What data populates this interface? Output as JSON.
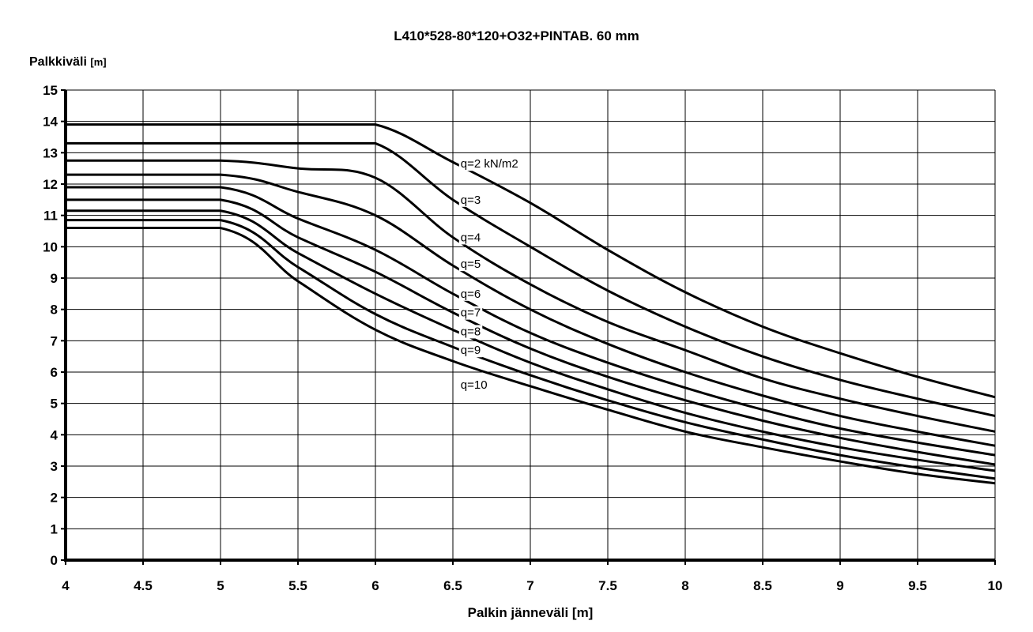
{
  "chart_data": {
    "type": "line",
    "title": "L410*528-80*120+O32+PINTAB. 60 mm",
    "ylabel": "Palkkiväli",
    "ylabel_unit": "[m]",
    "xlabel": "Palkin jänneväli [m]",
    "xlim": [
      4,
      10
    ],
    "ylim": [
      0,
      15
    ],
    "x_ticks": [
      "4",
      "4.5",
      "5",
      "5.5",
      "6",
      "6.5",
      "7",
      "7.5",
      "8",
      "8.5",
      "9",
      "9.5",
      "10"
    ],
    "y_ticks": [
      "0",
      "1",
      "2",
      "3",
      "4",
      "5",
      "6",
      "7",
      "8",
      "9",
      "10",
      "11",
      "12",
      "13",
      "14",
      "15"
    ],
    "grid": true,
    "x": [
      4,
      5,
      5.5,
      6,
      6.5,
      7,
      7.5,
      8,
      8.5,
      9,
      9.5,
      10
    ],
    "series": [
      {
        "name": "q=2 kN/m2",
        "values": [
          13.9,
          13.9,
          13.9,
          13.9,
          12.7,
          11.4,
          9.9,
          8.55,
          7.45,
          6.6,
          5.85,
          5.2
        ]
      },
      {
        "name": "q=3",
        "values": [
          13.3,
          13.3,
          13.3,
          13.3,
          11.5,
          10.0,
          8.6,
          7.45,
          6.5,
          5.75,
          5.15,
          4.6
        ]
      },
      {
        "name": "q=4",
        "values": [
          12.75,
          12.75,
          12.5,
          12.2,
          10.3,
          8.8,
          7.6,
          6.7,
          5.8,
          5.15,
          4.6,
          4.1
        ]
      },
      {
        "name": "q=5",
        "values": [
          12.3,
          12.3,
          11.75,
          11.0,
          9.4,
          8.0,
          6.9,
          6.0,
          5.25,
          4.6,
          4.1,
          3.65
        ]
      },
      {
        "name": "q=6",
        "values": [
          11.9,
          11.9,
          10.9,
          9.9,
          8.5,
          7.25,
          6.3,
          5.5,
          4.8,
          4.2,
          3.75,
          3.35
        ]
      },
      {
        "name": "q=7",
        "values": [
          11.5,
          11.5,
          10.3,
          9.2,
          7.9,
          6.75,
          5.85,
          5.1,
          4.45,
          3.9,
          3.45,
          3.05
        ]
      },
      {
        "name": "q=8",
        "values": [
          11.15,
          11.15,
          9.8,
          8.5,
          7.35,
          6.3,
          5.45,
          4.7,
          4.1,
          3.6,
          3.2,
          2.85
        ]
      },
      {
        "name": "q=9",
        "values": [
          10.85,
          10.85,
          9.35,
          7.85,
          6.8,
          5.9,
          5.1,
          4.4,
          3.85,
          3.35,
          2.95,
          2.6
        ]
      },
      {
        "name": "q=10",
        "values": [
          10.6,
          10.6,
          8.9,
          7.35,
          6.35,
          5.55,
          4.8,
          4.1,
          3.6,
          3.15,
          2.75,
          2.45
        ]
      }
    ],
    "labels": [
      {
        "text": "q=2 kN/m2",
        "x": 6.55,
        "y": 12.65
      },
      {
        "text": "q=3",
        "x": 6.55,
        "y": 11.5
      },
      {
        "text": "q=4",
        "x": 6.55,
        "y": 10.3
      },
      {
        "text": "q=5",
        "x": 6.55,
        "y": 9.45
      },
      {
        "text": "q=6",
        "x": 6.55,
        "y": 8.5
      },
      {
        "text": "q=7",
        "x": 6.55,
        "y": 7.9
      },
      {
        "text": "q=8",
        "x": 6.55,
        "y": 7.3
      },
      {
        "text": "q=9",
        "x": 6.55,
        "y": 6.7
      },
      {
        "text": "q=10",
        "x": 6.55,
        "y": 5.6
      }
    ]
  }
}
